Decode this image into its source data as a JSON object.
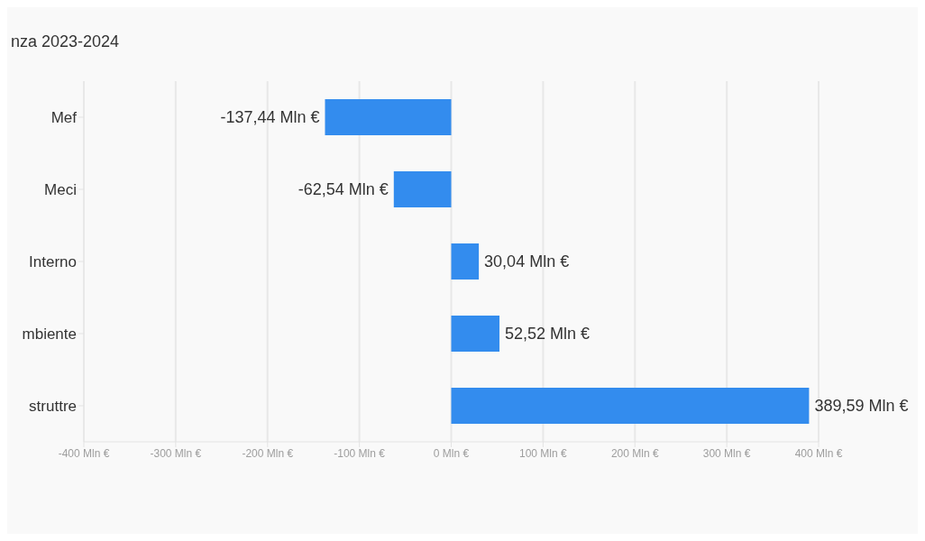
{
  "chart_data": {
    "type": "bar",
    "orientation": "horizontal",
    "title": "nza 2023-2024",
    "categories": [
      "Mef",
      "Meci",
      "Interno",
      "mbiente",
      "struttre"
    ],
    "values": [
      -137.44,
      -62.54,
      30.04,
      52.52,
      389.59
    ],
    "color": "#338cee",
    "value_labels": [
      "-137,44 Mln €",
      "-62,54 Mln €",
      "30,04 Mln €",
      "52,52 Mln €",
      "389,59 Mln €"
    ],
    "xlim": [
      -400,
      400
    ],
    "xticks": [
      {
        "value": -400,
        "label": "-400 Mln €"
      },
      {
        "value": -300,
        "label": "-300 Mln €"
      },
      {
        "value": -200,
        "label": "-200 Mln €"
      },
      {
        "value": -100,
        "label": "-100 Mln €"
      },
      {
        "value": 0,
        "label": "0 Mln €"
      },
      {
        "value": 100,
        "label": "100 Mln €"
      },
      {
        "value": 200,
        "label": "200 Mln €"
      },
      {
        "value": 300,
        "label": "300 Mln €"
      },
      {
        "value": 400,
        "label": "400 Mln €"
      }
    ],
    "grid": "x"
  }
}
